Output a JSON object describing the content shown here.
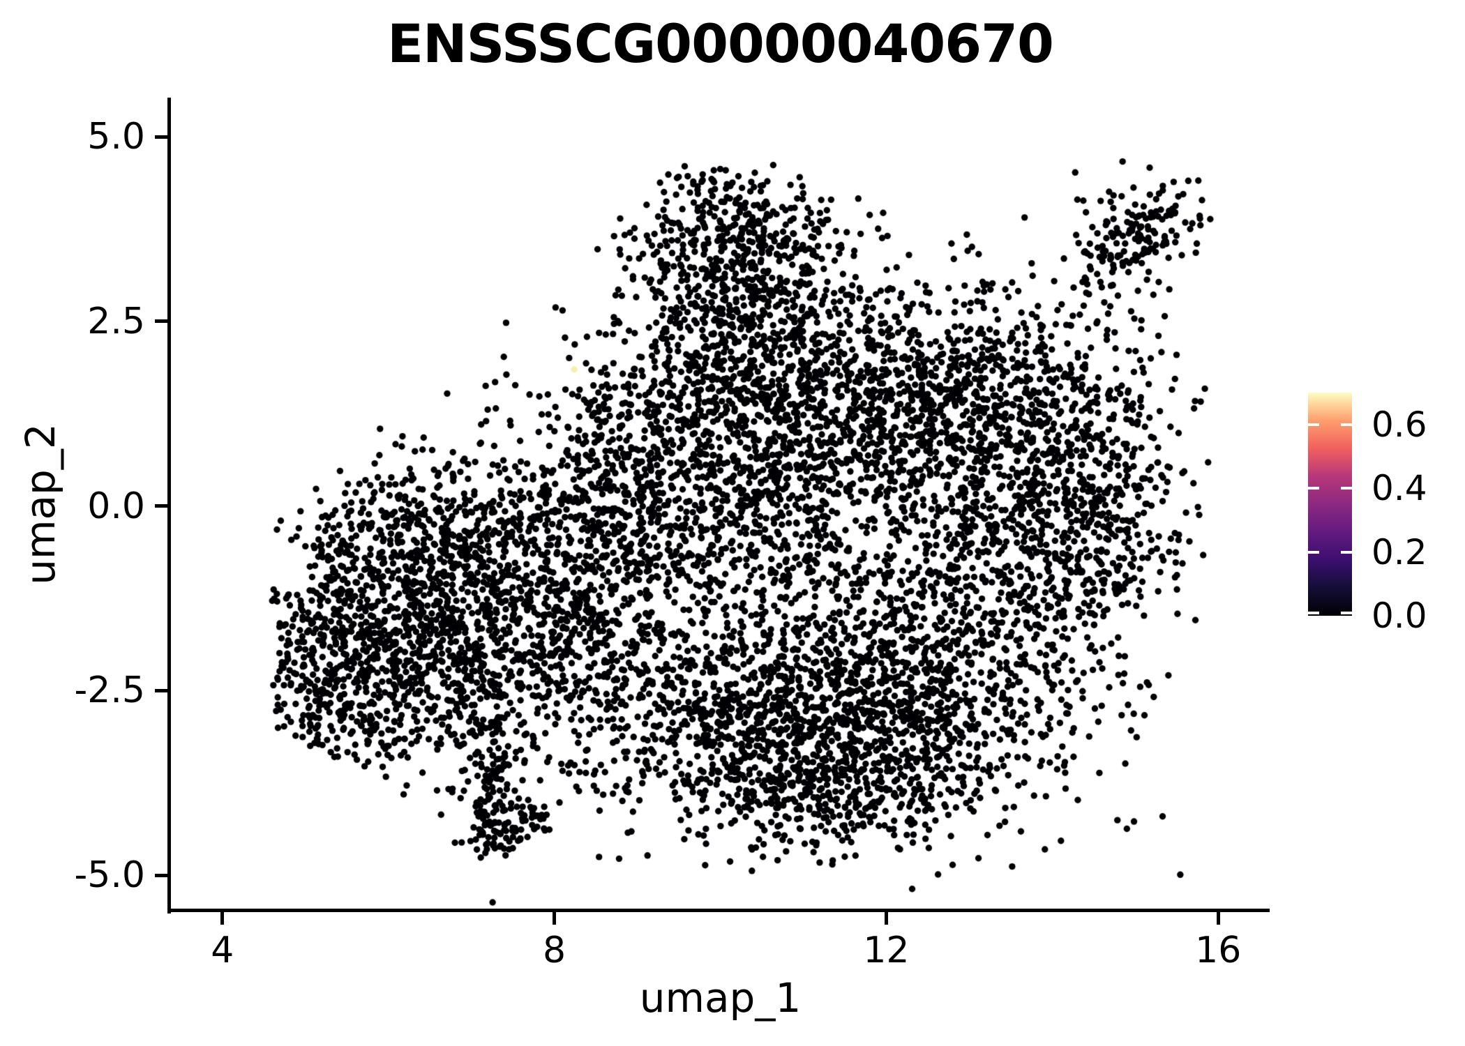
{
  "title": "ENSSSCG00000040670",
  "background_color": "#FFFFFF",
  "axis_color": "#000000",
  "text_color": "#000000",
  "axes": {
    "x": {
      "label": "umap_1",
      "tick_labels": [
        "4",
        "8",
        "12",
        "16"
      ],
      "tick_values": [
        4,
        8,
        12,
        16
      ],
      "range": [
        3.38,
        16.62
      ]
    },
    "y": {
      "label": "umap_2",
      "tick_labels": [
        "5.0",
        "2.5",
        "0.0",
        "-2.5",
        "-5.0"
      ],
      "tick_values": [
        5.0,
        2.5,
        0.0,
        -2.5,
        -5.0
      ],
      "range": [
        -5.47,
        5.53
      ]
    }
  },
  "colorbar": {
    "vmin": 0.0,
    "vmax": 0.7,
    "tick_labels": [
      "0.6",
      "0.4",
      "0.2",
      "0.0"
    ],
    "tick_values": [
      0.6,
      0.4,
      0.2,
      0.0
    ],
    "colormap": "magma",
    "gradient_stops": [
      [
        0.0,
        "#000004"
      ],
      [
        0.125,
        "#140E36"
      ],
      [
        0.25,
        "#3B0F70"
      ],
      [
        0.375,
        "#641A80"
      ],
      [
        0.5,
        "#8C2981"
      ],
      [
        0.625,
        "#B73779"
      ],
      [
        0.75,
        "#F1605D"
      ],
      [
        0.875,
        "#FE9F6D"
      ],
      [
        1.0,
        "#FCFDBF"
      ]
    ]
  },
  "chart_data": {
    "type": "scatter",
    "title": "ENSSSCG00000040670",
    "xlabel": "umap_1",
    "ylabel": "umap_2",
    "xlim": [
      3.38,
      16.62
    ],
    "ylim": [
      -5.47,
      5.53
    ],
    "grid": false,
    "legend_position": "right",
    "point_radius_px": 4.7,
    "point_color": "#000004",
    "seed": 42,
    "n_points_approx": 9000,
    "clusters": [
      {
        "name": "left-lobe-core",
        "cx": 6.2,
        "cy": -2.0,
        "sx": 1.0,
        "sy": 0.85,
        "n": 1050,
        "clip": true
      },
      {
        "name": "left-lobe-upper",
        "cx": 6.6,
        "cy": -0.5,
        "sx": 0.85,
        "sy": 0.65,
        "n": 520,
        "clip": true
      },
      {
        "name": "left-edge",
        "cx": 5.2,
        "cy": -2.3,
        "sx": 0.45,
        "sy": 0.8,
        "n": 180,
        "clip": true
      },
      {
        "name": "mid-band",
        "cx": 8.4,
        "cy": -1.4,
        "sx": 0.75,
        "sy": 1.05,
        "n": 620,
        "clip": true
      },
      {
        "name": "mid-upper",
        "cx": 8.9,
        "cy": 0.4,
        "sx": 0.7,
        "sy": 0.8,
        "n": 380,
        "clip": true
      },
      {
        "name": "center",
        "cx": 10.6,
        "cy": 0.3,
        "sx": 0.95,
        "sy": 1.1,
        "n": 850,
        "clip": true
      },
      {
        "name": "center-top",
        "cx": 10.4,
        "cy": 2.0,
        "sx": 0.8,
        "sy": 0.7,
        "n": 500,
        "clip": true
      },
      {
        "name": "peninsula",
        "cx": 10.2,
        "cy": 3.5,
        "sx": 0.65,
        "sy": 0.6,
        "n": 480,
        "clip": true
      },
      {
        "name": "right-top",
        "cx": 12.9,
        "cy": 1.4,
        "sx": 1.05,
        "sy": 0.85,
        "n": 950,
        "clip": true
      },
      {
        "name": "right-mass",
        "cx": 13.6,
        "cy": -0.6,
        "sx": 0.85,
        "sy": 0.95,
        "n": 650,
        "clip": true
      },
      {
        "name": "right-edge",
        "cx": 14.6,
        "cy": 0.3,
        "sx": 0.5,
        "sy": 0.9,
        "n": 220,
        "clip": true
      },
      {
        "name": "bottom-right",
        "cx": 12.0,
        "cy": -2.6,
        "sx": 1.15,
        "sy": 0.85,
        "n": 1150,
        "clip": true
      },
      {
        "name": "bottom-center",
        "cx": 10.2,
        "cy": -3.1,
        "sx": 0.85,
        "sy": 0.6,
        "n": 480,
        "clip": true
      },
      {
        "name": "bottom-low",
        "cx": 11.3,
        "cy": -3.9,
        "sx": 0.8,
        "sy": 0.35,
        "n": 260,
        "clip": true
      },
      {
        "name": "halo",
        "cx": 10.5,
        "cy": 0.0,
        "sx": 2.8,
        "sy": 2.2,
        "n": 330,
        "clip": true
      },
      {
        "name": "island-top-right",
        "cx": 15.05,
        "cy": 3.7,
        "sx": 0.38,
        "sy": 0.32,
        "n": 150,
        "clip": false
      },
      {
        "name": "island-trail",
        "cx": 14.5,
        "cy": 3.0,
        "sx": 0.25,
        "sy": 0.35,
        "n": 22,
        "clip": false
      },
      {
        "name": "tail-strand",
        "cx": 7.25,
        "cy": -3.7,
        "sx": 0.13,
        "sy": 0.45,
        "n": 90,
        "clip": false
      },
      {
        "name": "tail-blob",
        "cx": 7.3,
        "cy": -4.45,
        "sx": 0.16,
        "sy": 0.14,
        "n": 55,
        "clip": false
      },
      {
        "name": "tail-arm",
        "cx": 7.75,
        "cy": -4.15,
        "sx": 0.22,
        "sy": 0.12,
        "n": 30,
        "clip": false
      }
    ],
    "bounds": {
      "x_min": 4.6,
      "x_max": 15.9,
      "y_max": 4.62,
      "top_left_line": {
        "applies_below_x": 10.3,
        "slope": 0.97,
        "x0": 5.0,
        "y0": 0.25
      },
      "bottom_left_line": {
        "applies_below_x": 8.2,
        "slope": -0.607,
        "x0": 4.8,
        "y0": -3.1
      }
    },
    "highlight_points": [
      {
        "x": 8.24,
        "y": 1.85,
        "value": 0.65,
        "color": "#F4F0AC"
      }
    ]
  }
}
